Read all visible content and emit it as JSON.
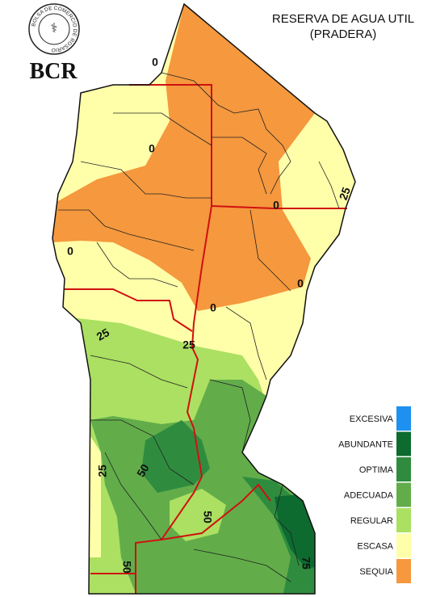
{
  "header": {
    "title_lines": [
      "RESERVA DE AGUA UTIL",
      "(PRADERA)"
    ]
  },
  "logo": {
    "ring": "BOLSA DE COMERCIO DE ROSARIO",
    "text": "BCR"
  },
  "legend": [
    {
      "label": "EXCESIVA",
      "color": "#1e90f0"
    },
    {
      "label": "ABUNDANTE",
      "color": "#0d6b30"
    },
    {
      "label": "OPTIMA",
      "color": "#2f8c3f"
    },
    {
      "label": "ADECUADA",
      "color": "#62ad4a"
    },
    {
      "label": "REGULAR",
      "color": "#abe062"
    },
    {
      "label": "ESCASA",
      "color": "#ffffaa"
    },
    {
      "label": "SEQUIA",
      "color": "#f5983e"
    }
  ],
  "contour_labels": [
    "0",
    "0",
    "0",
    "0",
    "0",
    "0",
    "25",
    "25",
    "25",
    "25",
    "50",
    "50",
    "50",
    "75"
  ]
}
